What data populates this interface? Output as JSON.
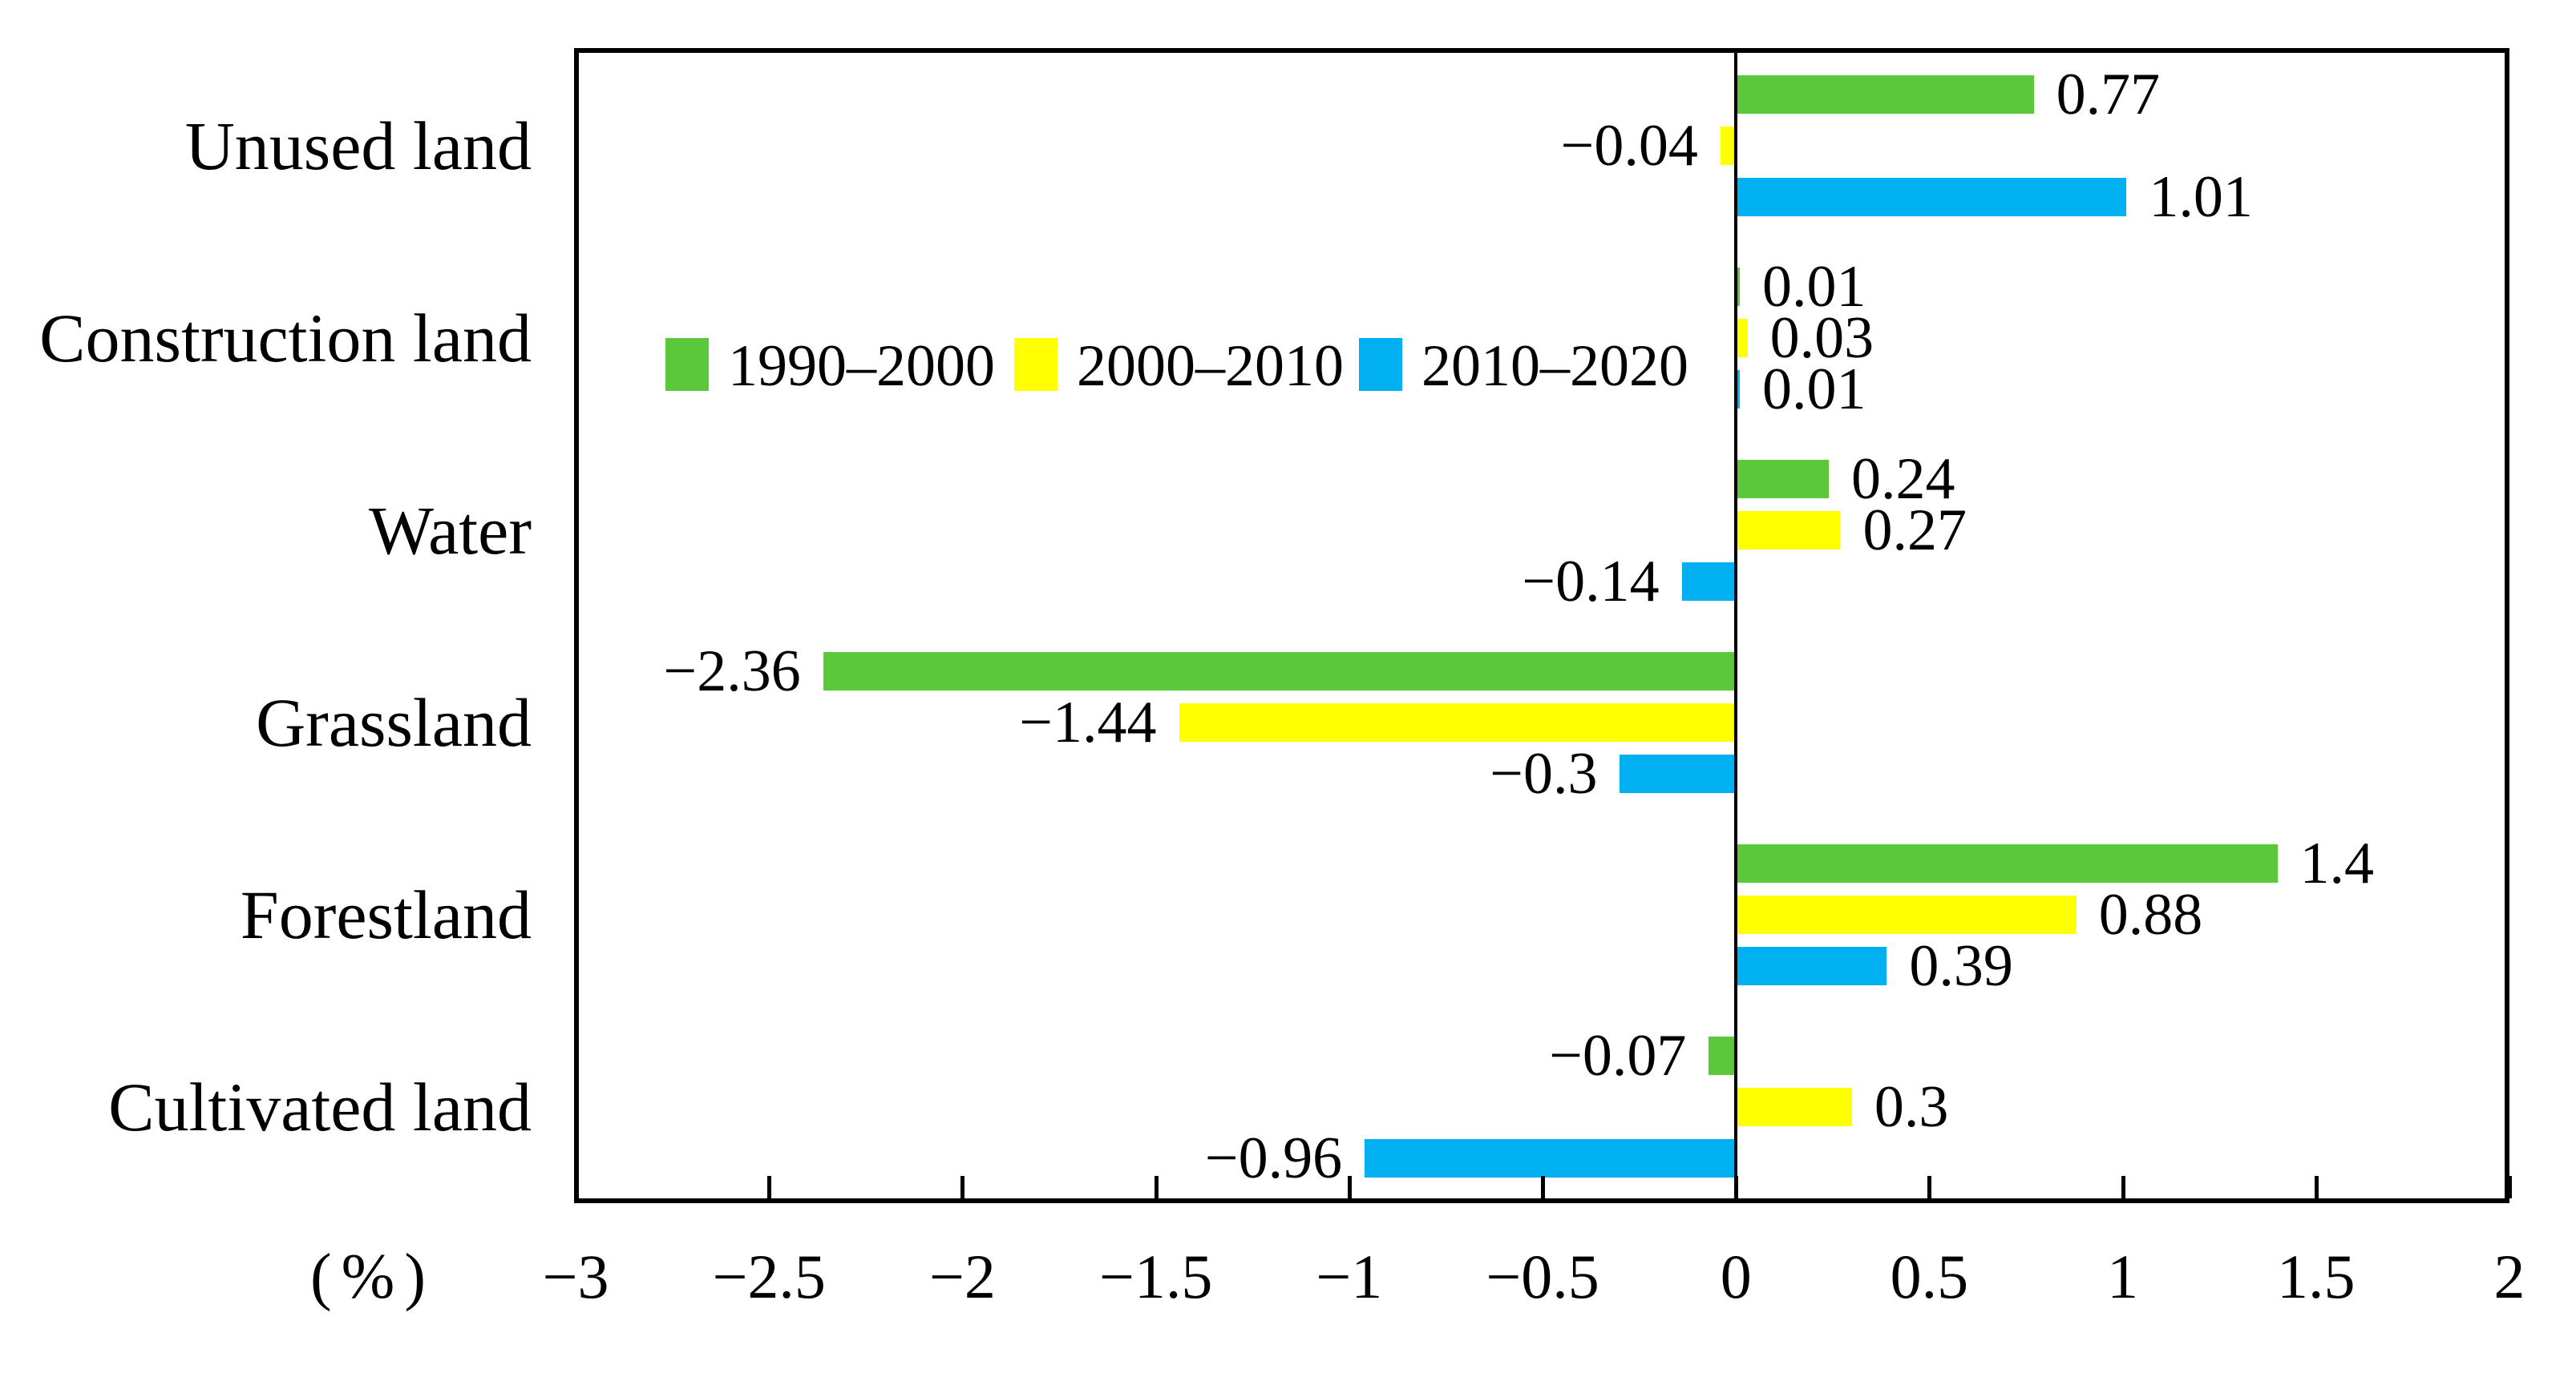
{
  "chart_data": {
    "type": "bar",
    "orientation": "horizontal",
    "title": "",
    "unit_label": "(%)",
    "grid": "off",
    "legend_position": "inside-upper-left-area",
    "categories": [
      "Unused land",
      "Construction land",
      "Water",
      "Grassland",
      "Forestland",
      "Cultivated land"
    ],
    "series": [
      {
        "name": "1990–2000",
        "color": "#5BC83C",
        "values": [
          0.77,
          0.01,
          0.24,
          -2.36,
          1.4,
          -0.07
        ],
        "labels": [
          "0.77",
          "0.01",
          "0.24",
          "−2.36",
          "1.4",
          "−0.07"
        ]
      },
      {
        "name": "2000–2010",
        "color": "#FFFF00",
        "values": [
          -0.04,
          0.03,
          0.27,
          -1.44,
          0.88,
          0.3
        ],
        "labels": [
          "−0.04",
          "0.03",
          "0.27",
          "−1.44",
          "0.88",
          "0.3"
        ]
      },
      {
        "name": "2010–2020",
        "color": "#00B0F0",
        "values": [
          1.01,
          0.01,
          -0.14,
          -0.3,
          0.39,
          -0.96
        ],
        "labels": [
          "1.01",
          "0.01",
          "−0.14",
          "−0.3",
          "0.39",
          "−0.96"
        ]
      }
    ],
    "x_axis": {
      "min": -3,
      "max": 2,
      "tick_values": [
        -3,
        -2.5,
        -2,
        -1.5,
        -1,
        -0.5,
        0,
        0.5,
        1,
        1.5,
        2
      ],
      "tick_labels": [
        "−3",
        "−2.5",
        "−2",
        "−1.5",
        "−1",
        "−0.5",
        "0",
        "0.5",
        "1",
        "1.5",
        "2"
      ]
    },
    "colors": {
      "axis": "#000000",
      "text": "#000000",
      "background": "#FFFFFF"
    }
  }
}
